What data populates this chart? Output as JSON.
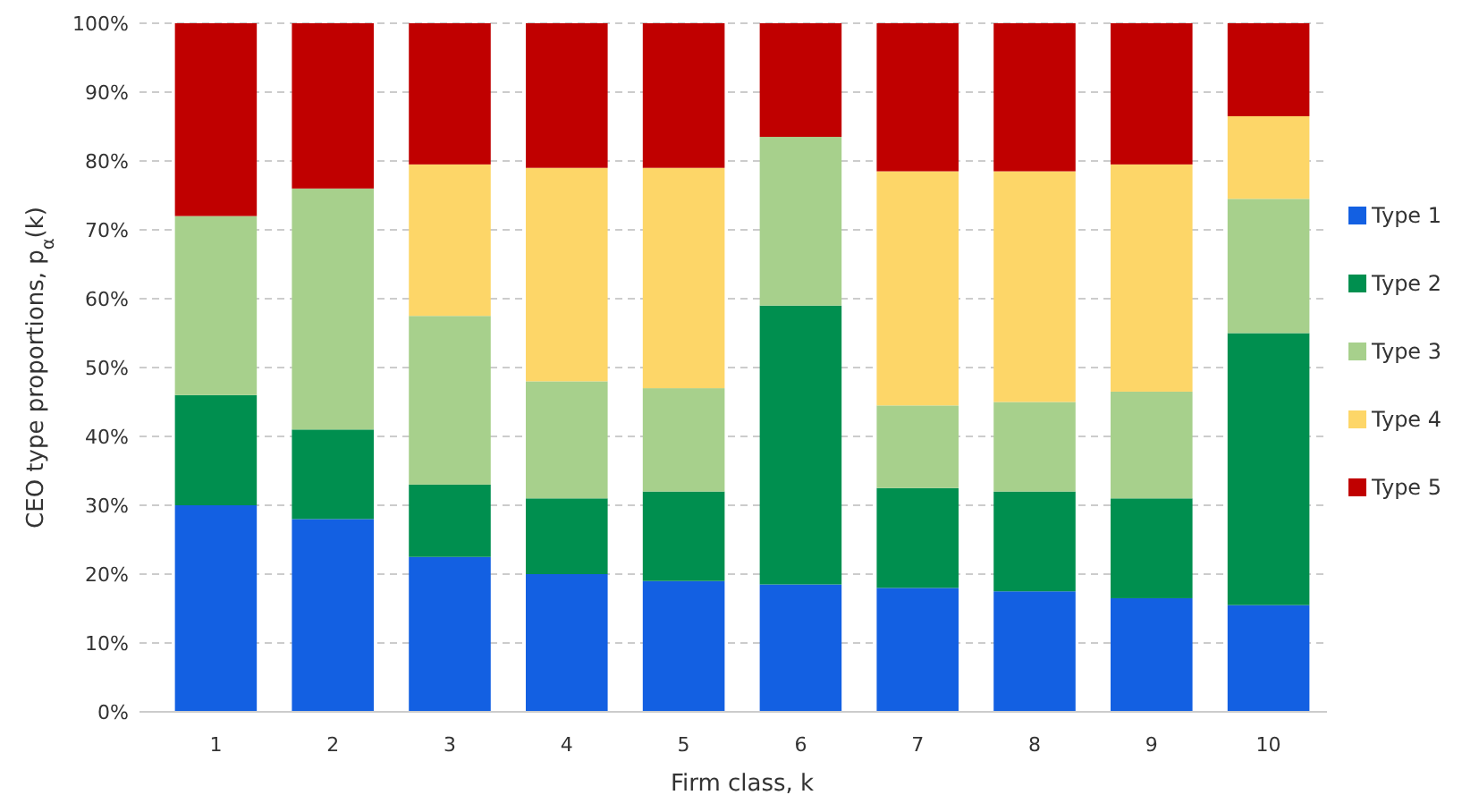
{
  "chart_data": {
    "type": "bar",
    "stacked": true,
    "xlabel": "Firm class, k",
    "ylabel": "CEO type proportions, p$_{α}$(k)",
    "categories": [
      "1",
      "2",
      "3",
      "4",
      "5",
      "6",
      "7",
      "8",
      "9",
      "10"
    ],
    "series": [
      {
        "name": "Type 1",
        "color": "#1360e2",
        "values": [
          30,
          28,
          22.5,
          20,
          19,
          18.5,
          18,
          17.5,
          16.5,
          15.5
        ]
      },
      {
        "name": "Type 2",
        "color": "#008f4f",
        "values": [
          16,
          13,
          10.5,
          11,
          13,
          40.5,
          14.5,
          14.5,
          14.5,
          39.5
        ]
      },
      {
        "name": "Type 3",
        "color": "#a7d08c",
        "values": [
          26,
          35,
          24.5,
          17,
          15,
          24.5,
          12,
          13,
          15.5,
          19.5
        ]
      },
      {
        "name": "Type 4",
        "color": "#fdd668",
        "values": [
          0,
          0,
          22,
          31,
          32,
          0,
          34,
          33.5,
          33,
          12
        ]
      },
      {
        "name": "Type 5",
        "color": "#c00000",
        "values": [
          28,
          24,
          20.5,
          21,
          21,
          16.5,
          21.5,
          21.5,
          20.5,
          13.5
        ]
      }
    ],
    "ylim": [
      0,
      100
    ],
    "yticks": [
      {
        "value": 0,
        "label": "0%"
      },
      {
        "value": 10,
        "label": "10%"
      },
      {
        "value": 20,
        "label": "20%"
      },
      {
        "value": 30,
        "label": "30%"
      },
      {
        "value": 40,
        "label": "40%"
      },
      {
        "value": 50,
        "label": "50%"
      },
      {
        "value": 60,
        "label": "60%"
      },
      {
        "value": 70,
        "label": "70%"
      },
      {
        "value": 80,
        "label": "80%"
      },
      {
        "value": 90,
        "label": "90%"
      },
      {
        "value": 100,
        "label": "100%"
      }
    ],
    "grid": "y",
    "legend": "right"
  }
}
